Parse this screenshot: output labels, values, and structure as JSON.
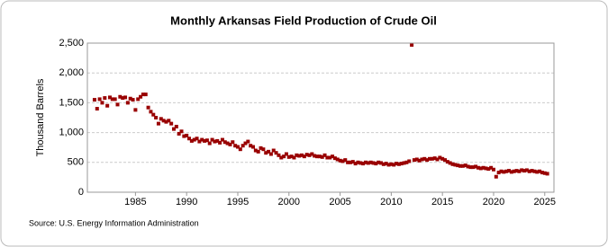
{
  "chart_data": {
    "type": "scatter",
    "title": "Monthly Arkansas Field Production of Crude Oil",
    "y_label": "Thousand Barrels",
    "source": "Source: U.S. Energy Information Administration",
    "xlim": [
      1980.3,
      2025.9
    ],
    "ylim": [
      0,
      2500
    ],
    "xticks": [
      1985,
      1990,
      1995,
      2000,
      2005,
      2010,
      2015,
      2020,
      2025
    ],
    "yticks": [
      0,
      500,
      {
        "value": 1000,
        "label": "1,000"
      },
      {
        "value": 1500,
        "label": "1,500"
      },
      {
        "value": 2000,
        "label": "2,000"
      },
      {
        "value": 2500,
        "label": "2,500"
      }
    ],
    "grid": true,
    "color": "#990000",
    "x": [
      1981,
      1981.25,
      1981.5,
      1981.75,
      1982,
      1982.25,
      1982.5,
      1982.75,
      1983,
      1983.25,
      1983.5,
      1983.75,
      1984,
      1984.25,
      1984.5,
      1984.75,
      1985,
      1985.25,
      1985.5,
      1985.75,
      1986,
      1986.25,
      1986.5,
      1986.75,
      1987,
      1987.25,
      1987.5,
      1987.75,
      1988,
      1988.25,
      1988.5,
      1988.75,
      1989,
      1989.25,
      1989.5,
      1989.75,
      1990,
      1990.25,
      1990.5,
      1990.75,
      1991,
      1991.25,
      1991.5,
      1991.75,
      1992,
      1992.25,
      1992.5,
      1992.75,
      1993,
      1993.25,
      1993.5,
      1993.75,
      1994,
      1994.25,
      1994.5,
      1994.75,
      1995,
      1995.25,
      1995.5,
      1995.75,
      1996,
      1996.25,
      1996.5,
      1996.75,
      1997,
      1997.25,
      1997.5,
      1997.75,
      1998,
      1998.25,
      1998.5,
      1998.75,
      1999,
      1999.25,
      1999.5,
      1999.75,
      2000,
      2000.25,
      2000.5,
      2000.75,
      2001,
      2001.25,
      2001.5,
      2001.75,
      2002,
      2002.25,
      2002.5,
      2002.75,
      2003,
      2003.25,
      2003.5,
      2003.75,
      2004,
      2004.25,
      2004.5,
      2004.75,
      2005,
      2005.25,
      2005.5,
      2005.75,
      2006,
      2006.25,
      2006.5,
      2006.75,
      2007,
      2007.25,
      2007.5,
      2007.75,
      2008,
      2008.25,
      2008.5,
      2008.75,
      2009,
      2009.25,
      2009.5,
      2009.75,
      2010,
      2010.25,
      2010.5,
      2010.75,
      2011,
      2011.25,
      2011.5,
      2011.75,
      2012,
      2012.25,
      2012.5,
      2012.75,
      2013,
      2013.25,
      2013.5,
      2013.75,
      2014,
      2014.25,
      2014.5,
      2014.75,
      2015,
      2015.25,
      2015.5,
      2015.75,
      2016,
      2016.25,
      2016.5,
      2016.75,
      2017,
      2017.25,
      2017.5,
      2017.75,
      2018,
      2018.25,
      2018.5,
      2018.75,
      2019,
      2019.25,
      2019.5,
      2019.75,
      2020,
      2020.25,
      2020.5,
      2020.75,
      2021,
      2021.25,
      2021.5,
      2021.75,
      2022,
      2022.25,
      2022.5,
      2022.75,
      2023,
      2023.25,
      2023.5,
      2023.75,
      2024,
      2024.25,
      2024.5,
      2024.75,
      2025,
      2025.25
    ],
    "values": [
      1550,
      1400,
      1560,
      1500,
      1580,
      1450,
      1590,
      1560,
      1560,
      1470,
      1600,
      1580,
      1590,
      1500,
      1570,
      1550,
      1380,
      1560,
      1600,
      1640,
      1640,
      1420,
      1350,
      1300,
      1250,
      1150,
      1230,
      1200,
      1180,
      1200,
      1150,
      1060,
      1100,
      980,
      1020,
      940,
      950,
      900,
      860,
      880,
      900,
      850,
      880,
      860,
      870,
      820,
      880,
      850,
      860,
      830,
      880,
      840,
      820,
      800,
      840,
      780,
      760,
      720,
      780,
      820,
      850,
      780,
      760,
      700,
      680,
      740,
      720,
      660,
      680,
      640,
      700,
      660,
      620,
      580,
      600,
      640,
      590,
      600,
      580,
      620,
      610,
      620,
      600,
      630,
      620,
      640,
      610,
      600,
      600,
      590,
      620,
      580,
      580,
      600,
      570,
      550,
      530,
      520,
      540,
      500,
      500,
      510,
      480,
      500,
      490,
      480,
      500,
      490,
      500,
      490,
      480,
      500,
      490,
      470,
      480,
      460,
      470,
      460,
      480,
      470,
      480,
      490,
      500,
      520,
      2470,
      540,
      550,
      530,
      550,
      560,
      540,
      560,
      560,
      570,
      550,
      580,
      560,
      540,
      510,
      490,
      470,
      460,
      450,
      440,
      440,
      450,
      430,
      420,
      420,
      430,
      410,
      400,
      410,
      400,
      390,
      410,
      380,
      260,
      330,
      350,
      340,
      350,
      360,
      340,
      350,
      360,
      350,
      370,
      360,
      370,
      350,
      360,
      350,
      340,
      350,
      330,
      320,
      310
    ]
  }
}
